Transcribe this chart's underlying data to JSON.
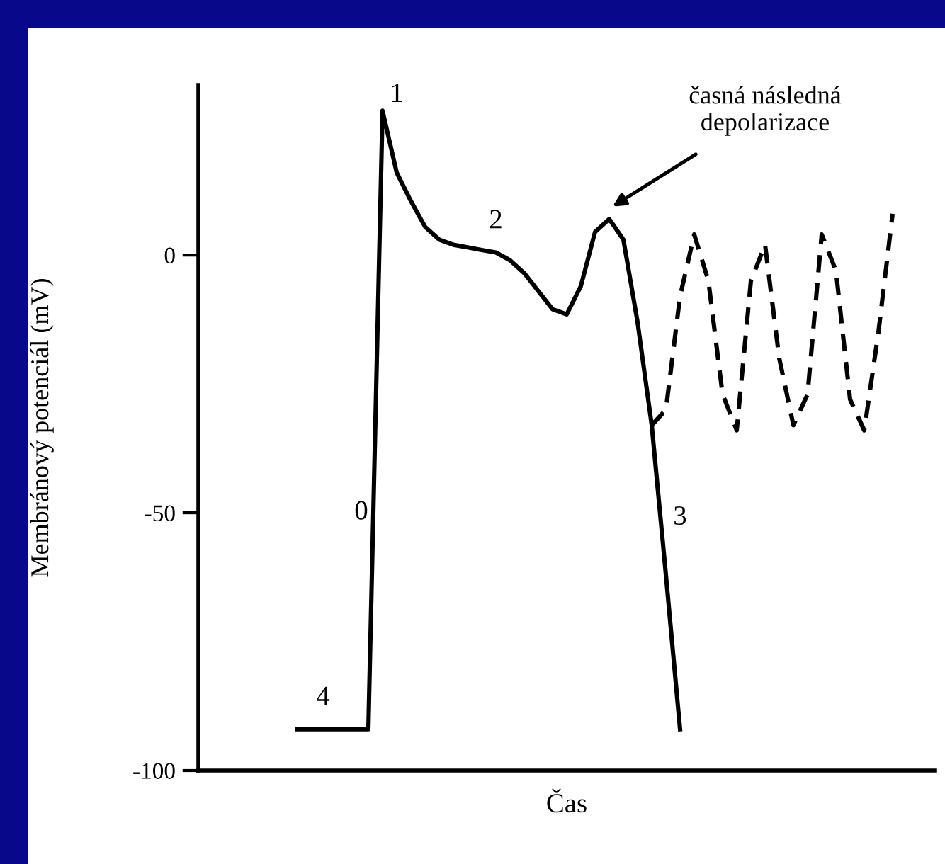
{
  "chart_data": {
    "type": "line",
    "xlabel": "Čas",
    "ylabel": "Membránový potenciál (mV)",
    "categories": [
      null,
      null,
      null,
      null,
      null,
      null,
      null,
      null,
      null,
      null,
      null,
      null,
      null,
      null,
      null,
      null,
      null,
      null,
      null,
      null,
      null,
      null,
      null,
      null,
      null,
      null,
      null,
      null,
      null,
      null,
      null,
      null,
      null,
      null,
      null,
      null,
      null,
      null,
      null,
      null,
      null,
      null,
      null
    ],
    "series": [
      {
        "color": "#000000",
        "line_style": "solid",
        "values": [
          -92,
          -92,
          -92,
          -92,
          -92,
          -92,
          28,
          16,
          10.5,
          5.5,
          3,
          2,
          1.5,
          1,
          0.5,
          -1,
          -3.5,
          -7,
          -10.5,
          -11.5,
          -6,
          4.5,
          7,
          3,
          -13,
          -33,
          -62,
          -92,
          null,
          null,
          null,
          null,
          null,
          null,
          null,
          null,
          null,
          null,
          null,
          null,
          null,
          null,
          null
        ]
      },
      {
        "color": "#000000",
        "line_style": "dashed",
        "values": [
          null,
          null,
          null,
          null,
          null,
          null,
          null,
          null,
          null,
          null,
          null,
          null,
          null,
          null,
          null,
          null,
          null,
          null,
          null,
          null,
          null,
          null,
          null,
          null,
          null,
          -33,
          -30,
          -8,
          4,
          -5,
          -27,
          -34,
          -5,
          2,
          -20,
          -33,
          -27,
          4,
          -3,
          -28,
          -34,
          -15,
          8
        ]
      }
    ],
    "ylim": [
      -100,
      33
    ],
    "yticks": [
      0,
      -50,
      -100
    ],
    "grid": false,
    "legend": false,
    "marker": "none",
    "annotations": [
      "1",
      "2",
      "0",
      "3",
      "4",
      "časná následná\ndepolarizace"
    ]
  }
}
